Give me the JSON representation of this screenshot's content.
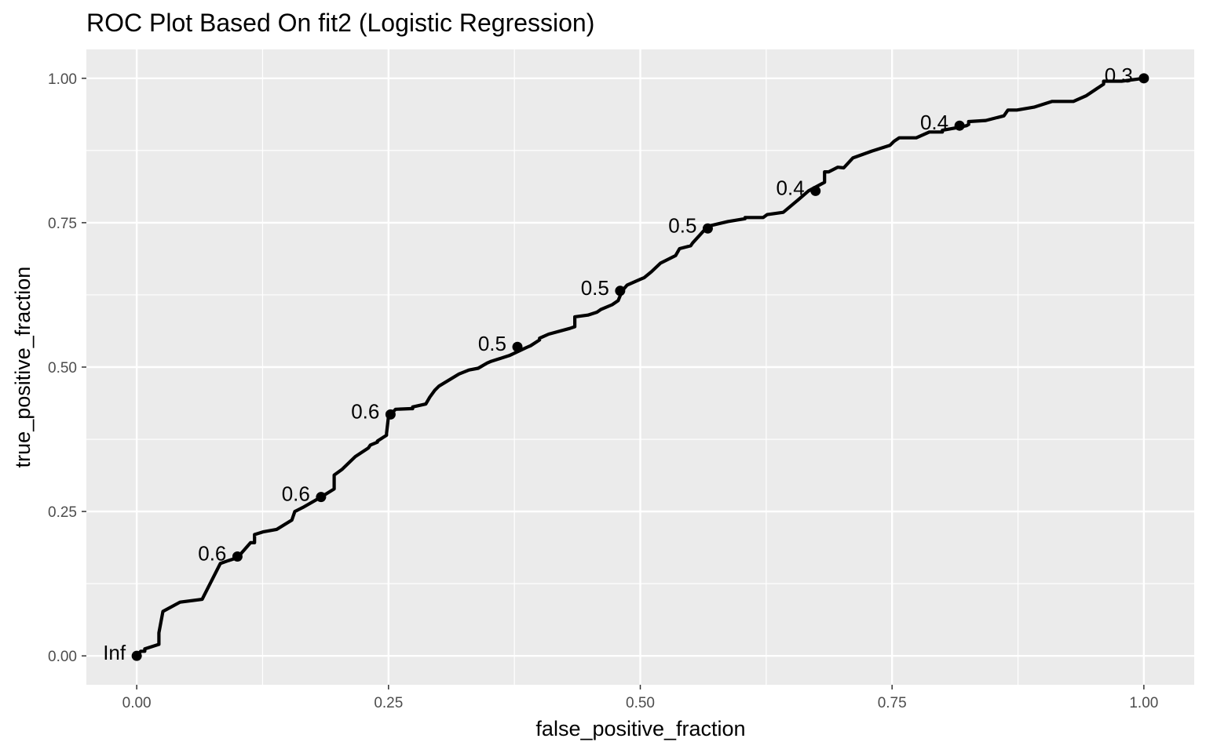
{
  "chart_data": {
    "type": "line",
    "title": "ROC Plot Based On fit2 (Logistic Regression)",
    "xlabel": "false_positive_fraction",
    "ylabel": "true_positive_fraction",
    "xlim": [
      -0.05,
      1.05
    ],
    "ylim": [
      -0.05,
      1.05
    ],
    "x_ticks": [
      0,
      0.25,
      0.5,
      0.75,
      1.0
    ],
    "x_tick_labels": [
      "0.00",
      "0.25",
      "0.50",
      "0.75",
      "1.00"
    ],
    "y_ticks": [
      0,
      0.25,
      0.5,
      0.75,
      1.0
    ],
    "y_tick_labels": [
      "0.00",
      "0.25",
      "0.50",
      "0.75",
      "1.00"
    ],
    "grid": true,
    "line_color": "#000000",
    "panel_background": "#ebebeb",
    "grid_color": "#ffffff",
    "series": [
      {
        "x": [
          0,
          0.004,
          0.008,
          0.008,
          0.022,
          0.022,
          0.026,
          0.043,
          0.065,
          0.083,
          0.091,
          0.1,
          0.113,
          0.117,
          0.117,
          0.126,
          0.139,
          0.154,
          0.157,
          0.165,
          0.183,
          0.196,
          0.196,
          0.204,
          0.217,
          0.23,
          0.232,
          0.239,
          0.239,
          0.248,
          0.248,
          0.25,
          0.252,
          0.257,
          0.272,
          0.274,
          0.274,
          0.287,
          0.291,
          0.296,
          0.3,
          0.32,
          0.33,
          0.339,
          0.348,
          0.352,
          0.37,
          0.387,
          0.391,
          0.4,
          0.4,
          0.409,
          0.43,
          0.435,
          0.435,
          0.448,
          0.448,
          0.457,
          0.461,
          0.472,
          0.478,
          0.482,
          0.487,
          0.5,
          0.504,
          0.511,
          0.52,
          0.535,
          0.539,
          0.55,
          0.552,
          0.565,
          0.565,
          0.57,
          0.587,
          0.604,
          0.604,
          0.622,
          0.626,
          0.642,
          0.657,
          0.667,
          0.683,
          0.683,
          0.687,
          0.696,
          0.702,
          0.711,
          0.73,
          0.748,
          0.752,
          0.757,
          0.761,
          0.774,
          0.787,
          0.8,
          0.8,
          0.816,
          0.824,
          0.826,
          0.826,
          0.843,
          0.861,
          0.865,
          0.874,
          0.891,
          0.909,
          0.93,
          0.943,
          0.96,
          0.96,
          0.978,
          1.0
        ],
        "y": [
          0,
          0.008,
          0.008,
          0.012,
          0.02,
          0.04,
          0.077,
          0.093,
          0.098,
          0.16,
          0.165,
          0.17,
          0.196,
          0.196,
          0.21,
          0.215,
          0.219,
          0.235,
          0.25,
          0.257,
          0.275,
          0.289,
          0.313,
          0.323,
          0.345,
          0.36,
          0.365,
          0.37,
          0.372,
          0.382,
          0.385,
          0.415,
          0.418,
          0.427,
          0.428,
          0.428,
          0.431,
          0.436,
          0.448,
          0.46,
          0.467,
          0.488,
          0.495,
          0.498,
          0.507,
          0.51,
          0.52,
          0.534,
          0.537,
          0.547,
          0.55,
          0.557,
          0.567,
          0.57,
          0.587,
          0.59,
          0.59,
          0.595,
          0.6,
          0.608,
          0.615,
          0.632,
          0.642,
          0.652,
          0.655,
          0.665,
          0.68,
          0.693,
          0.705,
          0.71,
          0.715,
          0.74,
          0.745,
          0.745,
          0.752,
          0.757,
          0.759,
          0.759,
          0.764,
          0.768,
          0.79,
          0.805,
          0.82,
          0.838,
          0.838,
          0.846,
          0.845,
          0.862,
          0.874,
          0.884,
          0.891,
          0.897,
          0.897,
          0.897,
          0.907,
          0.907,
          0.91,
          0.915,
          0.918,
          0.92,
          0.925,
          0.927,
          0.935,
          0.945,
          0.945,
          0.95,
          0.96,
          0.96,
          0.97,
          0.99,
          0.995,
          0.995,
          1.0
        ]
      }
    ],
    "labeled_points": [
      {
        "x": 0.0,
        "y": 0.0,
        "label": "Inf"
      },
      {
        "x": 0.1,
        "y": 0.172,
        "label": "0.6"
      },
      {
        "x": 0.183,
        "y": 0.275,
        "label": "0.6"
      },
      {
        "x": 0.252,
        "y": 0.418,
        "label": "0.6"
      },
      {
        "x": 0.378,
        "y": 0.535,
        "label": "0.5"
      },
      {
        "x": 0.48,
        "y": 0.632,
        "label": "0.5"
      },
      {
        "x": 0.567,
        "y": 0.74,
        "label": "0.5"
      },
      {
        "x": 0.674,
        "y": 0.805,
        "label": "0.4"
      },
      {
        "x": 0.817,
        "y": 0.918,
        "label": "0.4"
      },
      {
        "x": 1.0,
        "y": 1.0,
        "label": "0.3"
      }
    ]
  }
}
